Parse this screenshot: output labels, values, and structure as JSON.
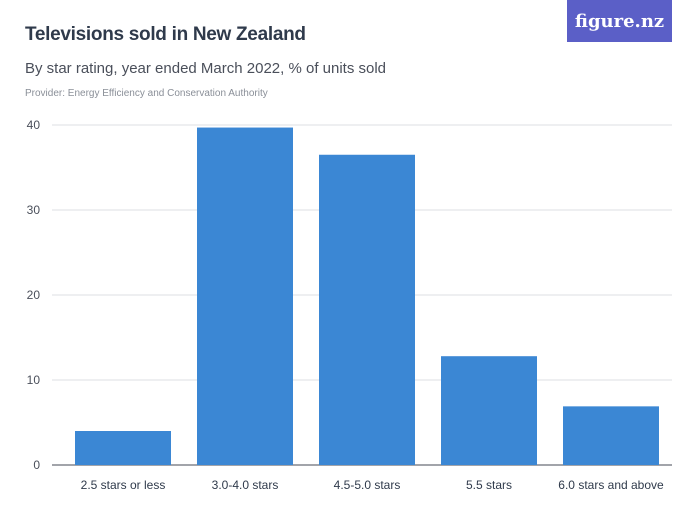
{
  "header": {
    "title": "Televisions sold in New Zealand",
    "subtitle": "By star rating, year ended March 2022, % of units sold",
    "provider": "Provider: Energy Efficiency and Conservation Authority",
    "logo_text": "figure.nz"
  },
  "colors": {
    "bar": "#3b87d4",
    "grid": "#dcdfe3",
    "logo_bg": "#5b5fc7"
  },
  "chart_data": {
    "type": "bar",
    "categories": [
      "2.5 stars or less",
      "3.0-4.0 stars",
      "4.5-5.0 stars",
      "5.5 stars",
      "6.0 stars and above"
    ],
    "values": [
      4,
      39.7,
      36.5,
      12.8,
      6.9
    ],
    "ylim": [
      0,
      40
    ],
    "yticks": [
      0,
      10,
      20,
      30,
      40
    ],
    "grid": true
  }
}
